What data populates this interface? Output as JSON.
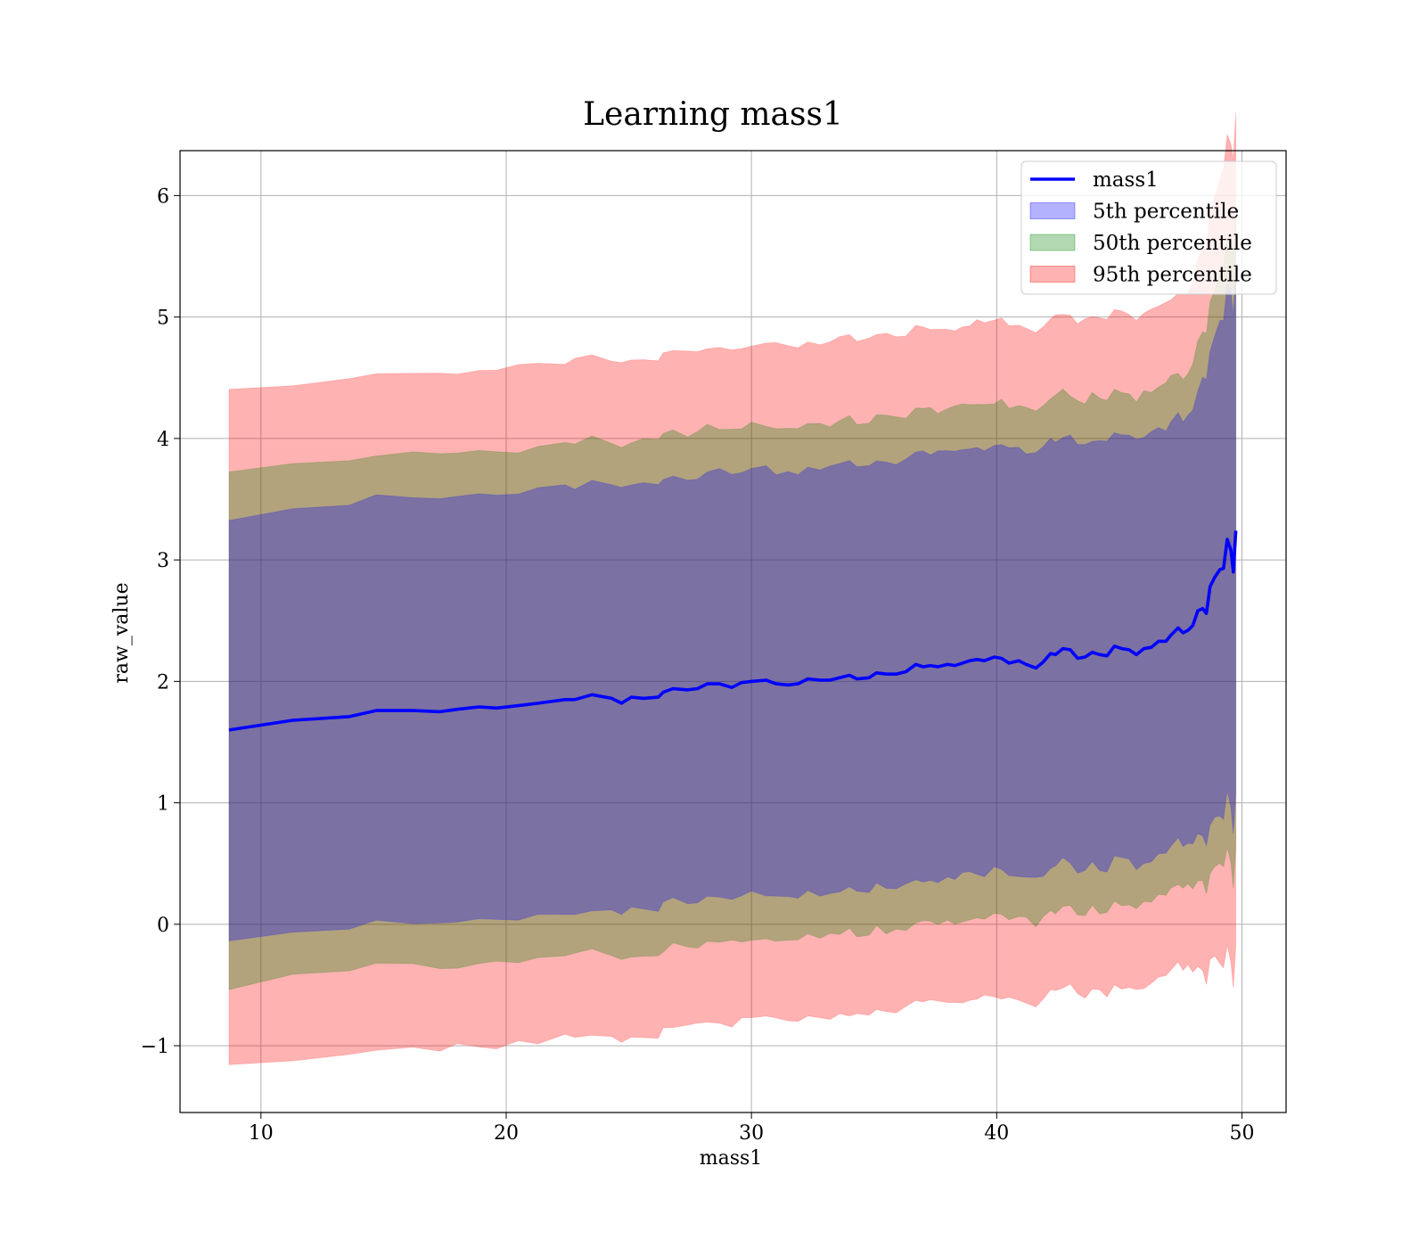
{
  "chart_data": {
    "type": "area",
    "title": "Learning mass1",
    "xlabel": "mass1",
    "ylabel": "raw_value",
    "xlim": [
      6.7,
      51.8
    ],
    "ylim": [
      -1.55,
      6.37
    ],
    "xticks": [
      10,
      20,
      30,
      40,
      50
    ],
    "yticks": [
      -1,
      0,
      1,
      2,
      3,
      4,
      5,
      6
    ],
    "xtick_labels": [
      "10",
      "20",
      "30",
      "40",
      "50"
    ],
    "ytick_labels": [
      "−1",
      "0",
      "1",
      "2",
      "3",
      "4",
      "5",
      "6"
    ],
    "grid": true,
    "legend_position": "top-right",
    "x": [
      8.7,
      11.3,
      13.6,
      14.7,
      16.2,
      17.3,
      18.0,
      18.9,
      19.6,
      20.5,
      21.3,
      22.4,
      22.8,
      23.5,
      24.3,
      24.7,
      25.1,
      25.6,
      26.2,
      26.4,
      26.8,
      27.4,
      27.8,
      28.2,
      28.7,
      29.2,
      29.6,
      30.0,
      30.6,
      31.0,
      31.5,
      31.9,
      32.3,
      32.8,
      33.2,
      33.6,
      34.0,
      34.3,
      34.8,
      35.1,
      35.5,
      35.9,
      36.3,
      36.7,
      37.0,
      37.3,
      37.6,
      38.0,
      38.3,
      38.6,
      38.9,
      39.2,
      39.5,
      39.9,
      40.2,
      40.5,
      40.9,
      41.2,
      41.6,
      41.9,
      42.2,
      42.4,
      42.7,
      43.0,
      43.3,
      43.6,
      43.9,
      44.2,
      44.5,
      44.8,
      45.1,
      45.4,
      45.7,
      46.0,
      46.3,
      46.6,
      46.9,
      47.1,
      47.4,
      47.6,
      47.8,
      48.0,
      48.2,
      48.4,
      48.55,
      48.7,
      48.9,
      49.1,
      49.25,
      49.4,
      49.55,
      49.65,
      49.75
    ],
    "series": [
      {
        "name": "mass1",
        "type": "line",
        "color": "#0000ff",
        "values": [
          1.6,
          1.68,
          1.71,
          1.76,
          1.76,
          1.75,
          1.77,
          1.79,
          1.78,
          1.8,
          1.82,
          1.85,
          1.85,
          1.89,
          1.86,
          1.82,
          1.87,
          1.86,
          1.87,
          1.91,
          1.94,
          1.93,
          1.94,
          1.98,
          1.98,
          1.95,
          1.99,
          2.0,
          2.01,
          1.98,
          1.97,
          1.98,
          2.02,
          2.01,
          2.01,
          2.03,
          2.05,
          2.02,
          2.03,
          2.07,
          2.06,
          2.06,
          2.08,
          2.14,
          2.12,
          2.13,
          2.12,
          2.14,
          2.13,
          2.15,
          2.17,
          2.18,
          2.17,
          2.2,
          2.19,
          2.15,
          2.17,
          2.14,
          2.11,
          2.16,
          2.23,
          2.22,
          2.27,
          2.26,
          2.19,
          2.2,
          2.24,
          2.22,
          2.21,
          2.29,
          2.27,
          2.26,
          2.22,
          2.27,
          2.28,
          2.33,
          2.33,
          2.38,
          2.44,
          2.4,
          2.42,
          2.46,
          2.58,
          2.6,
          2.56,
          2.78,
          2.86,
          2.92,
          2.93,
          3.17,
          3.08,
          2.9,
          3.24
        ]
      },
      {
        "name": "5th percentile",
        "type": "band",
        "color": "#0000ff",
        "opacity": 0.3,
        "center_offset": 0.0,
        "half_width_base": 1.75,
        "half_width_extra": [
          0,
          0,
          0,
          0,
          0,
          0,
          0,
          0,
          0,
          0,
          0,
          0,
          0,
          0,
          0,
          0,
          0,
          0,
          0,
          0,
          0,
          0,
          0,
          0,
          0,
          0,
          0,
          0,
          0,
          0,
          0,
          0,
          0,
          0,
          0,
          0,
          0,
          0,
          0,
          0,
          0,
          0,
          0,
          0,
          0,
          0,
          0,
          0,
          0,
          0,
          0,
          0,
          0,
          0,
          0,
          0,
          0,
          0,
          0,
          0,
          0,
          0,
          0,
          0,
          0,
          0,
          0,
          0,
          0,
          0,
          0,
          0,
          0,
          0,
          0,
          0,
          0,
          0,
          0,
          0,
          0,
          0,
          0,
          0,
          0,
          0,
          0,
          0,
          0,
          0,
          0,
          0,
          0
        ]
      },
      {
        "name": "50th percentile",
        "type": "band",
        "color": "#008000",
        "opacity": 0.3,
        "center_offset": 0.0,
        "half_width_base": 2.11,
        "half_width_extra": [
          0,
          0,
          0,
          0,
          0,
          0,
          0,
          0,
          0,
          0,
          0,
          0,
          0,
          0,
          0,
          0,
          0,
          0,
          0,
          0,
          0,
          0,
          0,
          0,
          0,
          0,
          0,
          0,
          0,
          0,
          0,
          0,
          0,
          0,
          0,
          0,
          0,
          0,
          0,
          0,
          0,
          0,
          0,
          0,
          0,
          0,
          0,
          0,
          0,
          0,
          0,
          0,
          0,
          0,
          0,
          0,
          0,
          0,
          0,
          0,
          0,
          0,
          0,
          0,
          0,
          0,
          0,
          0,
          0,
          0,
          0,
          0,
          0,
          0,
          0,
          0,
          0,
          0,
          0,
          0,
          0,
          0,
          0,
          0,
          0,
          0,
          0,
          0,
          0,
          0,
          0,
          0,
          0
        ]
      },
      {
        "name": "95th percentile",
        "type": "band",
        "color": "#ff0000",
        "opacity": 0.3,
        "center_offset": 0.0,
        "half_width_base": 2.78,
        "half_width_extra": [
          0,
          0,
          0,
          0,
          0,
          0,
          0,
          0,
          0,
          0,
          0,
          0,
          0,
          0,
          0,
          0,
          0,
          0,
          0,
          0,
          0,
          0,
          0,
          0,
          0,
          0,
          0,
          0,
          0,
          0,
          0,
          0,
          0,
          0,
          0,
          0,
          0,
          0,
          0,
          0,
          0,
          0,
          0,
          0,
          0,
          0,
          0,
          0,
          0,
          0,
          0,
          0,
          0,
          0,
          0,
          0,
          0,
          0,
          0,
          0,
          0,
          0,
          0,
          0,
          0,
          0,
          0,
          0,
          0,
          0,
          0,
          0,
          0,
          0,
          0,
          0,
          0,
          0,
          0,
          0,
          0,
          0,
          0,
          0,
          0,
          0,
          0,
          0,
          0,
          0,
          0,
          0,
          0
        ]
      }
    ]
  }
}
